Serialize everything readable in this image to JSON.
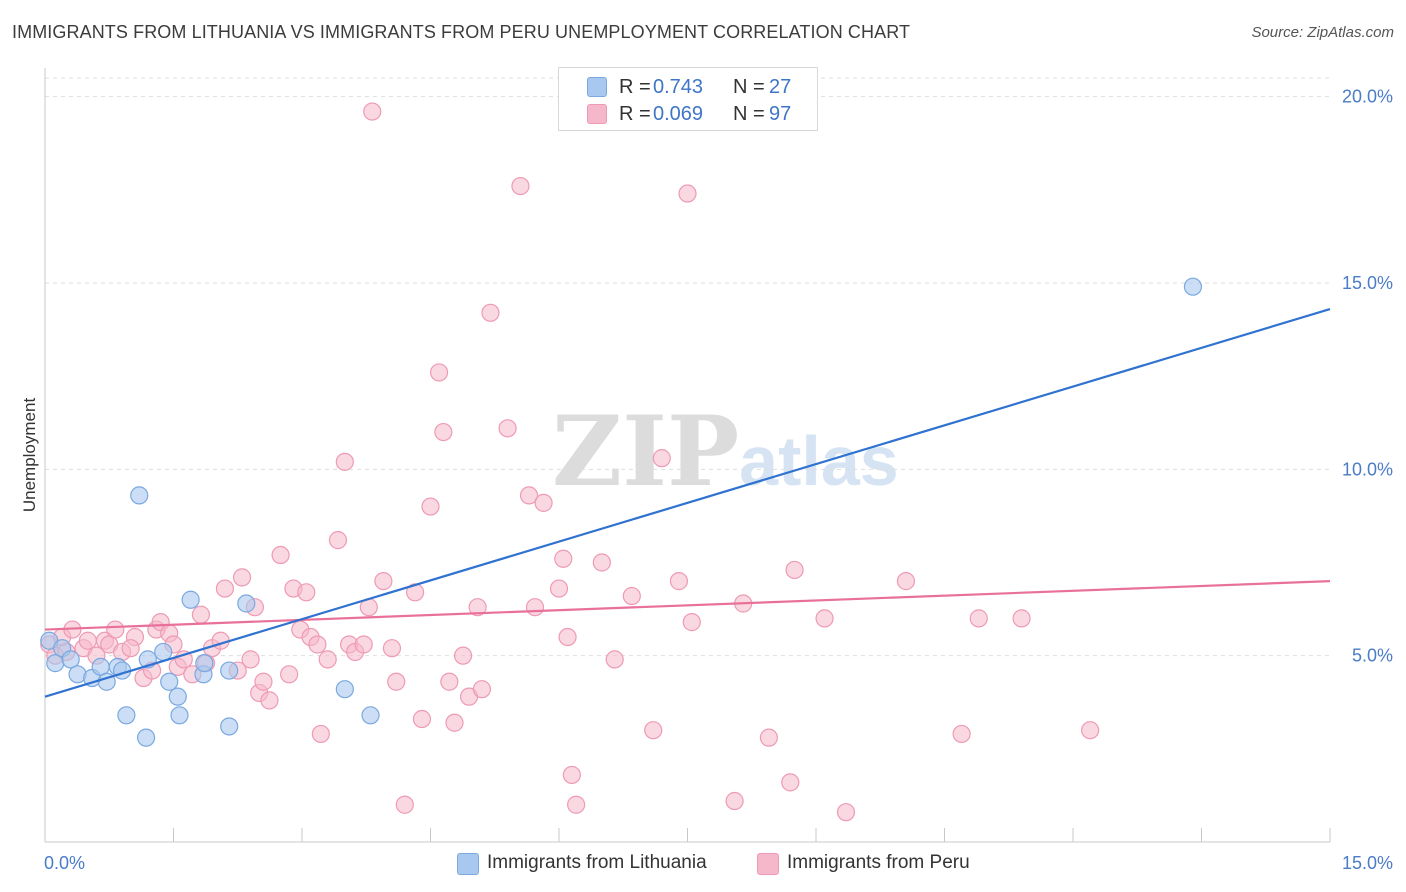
{
  "header": {
    "title": "IMMIGRANTS FROM LITHUANIA VS IMMIGRANTS FROM PERU UNEMPLOYMENT CORRELATION CHART",
    "source": "Source: ZipAtlas.com"
  },
  "watermark": {
    "zip": "ZIP",
    "atlas": "atlas"
  },
  "legend": {
    "rows": [
      {
        "r_label": "R =",
        "r_value": "0.743",
        "n_label": "N =",
        "n_value": "27",
        "color": "#a9c8ef"
      },
      {
        "r_label": "R =",
        "r_value": "0.069",
        "n_label": "N =",
        "n_value": "97",
        "color": "#f5b8cb"
      }
    ]
  },
  "bottom_legend": {
    "lithuania": "Immigrants from Lithuania",
    "peru": "Immigrants from Peru"
  },
  "colors": {
    "lithuania_fill": "#a9c8ef",
    "lithuania_stroke": "#7aa8e0",
    "lithuania_line": "#2f72d0",
    "peru_fill": "#f5b8cb",
    "peru_stroke": "#ee9ab4",
    "peru_line": "#e8709a",
    "grid": "#dedede",
    "axis": "#c8c8c8"
  },
  "chart_data": {
    "type": "scatter",
    "title": "IMMIGRANTS FROM LITHUANIA VS IMMIGRANTS FROM PERU UNEMPLOYMENT CORRELATION CHART",
    "xlabel": "",
    "ylabel": "Unemployment",
    "xlim": [
      0,
      15
    ],
    "ylim": [
      0,
      20.5
    ],
    "x_tick_labels": [
      {
        "value": 0,
        "label": "0.0%"
      },
      {
        "value": 15,
        "label": "15.0%"
      }
    ],
    "y_tick_labels": [
      {
        "value": 5,
        "label": "5.0%"
      },
      {
        "value": 10,
        "label": "10.0%"
      },
      {
        "value": 15,
        "label": "15.0%"
      },
      {
        "value": 20,
        "label": "20.0%"
      }
    ],
    "series": [
      {
        "name": "Immigrants from Lithuania",
        "R": 0.743,
        "N": 27,
        "trend": {
          "x": [
            0,
            15
          ],
          "y": [
            3.9,
            14.3
          ]
        },
        "points": [
          [
            0.05,
            5.4
          ],
          [
            0.12,
            4.8
          ],
          [
            0.2,
            5.2
          ],
          [
            0.3,
            4.9
          ],
          [
            0.38,
            4.5
          ],
          [
            0.55,
            4.4
          ],
          [
            0.65,
            4.7
          ],
          [
            0.72,
            4.3
          ],
          [
            0.85,
            4.7
          ],
          [
            0.95,
            3.4
          ],
          [
            1.1,
            9.3
          ],
          [
            1.18,
            2.8
          ],
          [
            1.38,
            5.1
          ],
          [
            1.45,
            4.3
          ],
          [
            1.55,
            3.9
          ],
          [
            1.57,
            3.4
          ],
          [
            1.7,
            6.5
          ],
          [
            1.85,
            4.5
          ],
          [
            1.86,
            4.8
          ],
          [
            2.15,
            3.1
          ],
          [
            2.15,
            4.6
          ],
          [
            2.35,
            6.4
          ],
          [
            3.5,
            4.1
          ],
          [
            3.8,
            3.4
          ],
          [
            1.2,
            4.9
          ],
          [
            0.9,
            4.6
          ],
          [
            13.4,
            14.9
          ]
        ]
      },
      {
        "name": "Immigrants from Peru",
        "R": 0.069,
        "N": 97,
        "trend": {
          "x": [
            0,
            15
          ],
          "y": [
            5.7,
            7.0
          ]
        },
        "points": [
          [
            0.05,
            5.3
          ],
          [
            0.12,
            5.0
          ],
          [
            0.2,
            5.5
          ],
          [
            0.25,
            5.1
          ],
          [
            0.32,
            5.7
          ],
          [
            0.45,
            5.2
          ],
          [
            0.5,
            5.4
          ],
          [
            0.6,
            5.0
          ],
          [
            0.7,
            5.4
          ],
          [
            0.75,
            5.3
          ],
          [
            0.82,
            5.7
          ],
          [
            0.9,
            5.1
          ],
          [
            1.05,
            5.5
          ],
          [
            1.15,
            4.4
          ],
          [
            1.25,
            4.6
          ],
          [
            1.3,
            5.7
          ],
          [
            1.35,
            5.9
          ],
          [
            1.45,
            5.6
          ],
          [
            1.5,
            5.3
          ],
          [
            1.55,
            4.7
          ],
          [
            1.62,
            4.9
          ],
          [
            1.72,
            4.5
          ],
          [
            1.82,
            6.1
          ],
          [
            1.88,
            4.8
          ],
          [
            1.95,
            5.2
          ],
          [
            2.05,
            5.4
          ],
          [
            2.1,
            6.8
          ],
          [
            2.25,
            4.6
          ],
          [
            2.3,
            7.1
          ],
          [
            2.4,
            4.9
          ],
          [
            2.45,
            6.3
          ],
          [
            2.5,
            4.0
          ],
          [
            2.55,
            4.3
          ],
          [
            2.62,
            3.8
          ],
          [
            2.75,
            7.7
          ],
          [
            2.85,
            4.5
          ],
          [
            2.9,
            6.8
          ],
          [
            2.98,
            5.7
          ],
          [
            3.05,
            6.7
          ],
          [
            3.1,
            5.5
          ],
          [
            3.18,
            5.3
          ],
          [
            3.22,
            2.9
          ],
          [
            3.3,
            4.9
          ],
          [
            3.42,
            8.1
          ],
          [
            3.5,
            10.2
          ],
          [
            3.55,
            5.3
          ],
          [
            3.62,
            5.1
          ],
          [
            3.72,
            5.3
          ],
          [
            3.78,
            6.3
          ],
          [
            3.82,
            19.6
          ],
          [
            3.95,
            7.0
          ],
          [
            4.05,
            5.2
          ],
          [
            4.1,
            4.3
          ],
          [
            4.2,
            1.0
          ],
          [
            4.32,
            6.7
          ],
          [
            4.4,
            3.3
          ],
          [
            4.5,
            9.0
          ],
          [
            4.6,
            12.6
          ],
          [
            4.65,
            11.0
          ],
          [
            4.72,
            4.3
          ],
          [
            4.78,
            3.2
          ],
          [
            4.88,
            5.0
          ],
          [
            4.95,
            3.9
          ],
          [
            5.05,
            6.3
          ],
          [
            5.1,
            4.1
          ],
          [
            5.2,
            14.2
          ],
          [
            5.4,
            11.1
          ],
          [
            5.55,
            17.6
          ],
          [
            5.65,
            9.3
          ],
          [
            5.72,
            6.3
          ],
          [
            5.82,
            9.1
          ],
          [
            6.0,
            6.8
          ],
          [
            6.05,
            7.6
          ],
          [
            6.15,
            1.8
          ],
          [
            6.2,
            1.0
          ],
          [
            6.5,
            7.5
          ],
          [
            6.65,
            4.9
          ],
          [
            6.85,
            6.6
          ],
          [
            7.1,
            3.0
          ],
          [
            7.2,
            10.3
          ],
          [
            7.4,
            7.0
          ],
          [
            7.5,
            17.4
          ],
          [
            7.55,
            5.9
          ],
          [
            8.05,
            1.1
          ],
          [
            8.15,
            6.4
          ],
          [
            8.45,
            2.8
          ],
          [
            8.7,
            1.6
          ],
          [
            8.75,
            7.3
          ],
          [
            9.1,
            6.0
          ],
          [
            9.35,
            0.8
          ],
          [
            10.05,
            7.0
          ],
          [
            10.7,
            2.9
          ],
          [
            11.4,
            6.0
          ],
          [
            12.2,
            3.0
          ],
          [
            10.9,
            6.0
          ],
          [
            6.1,
            5.5
          ],
          [
            1.0,
            5.2
          ]
        ]
      }
    ]
  }
}
